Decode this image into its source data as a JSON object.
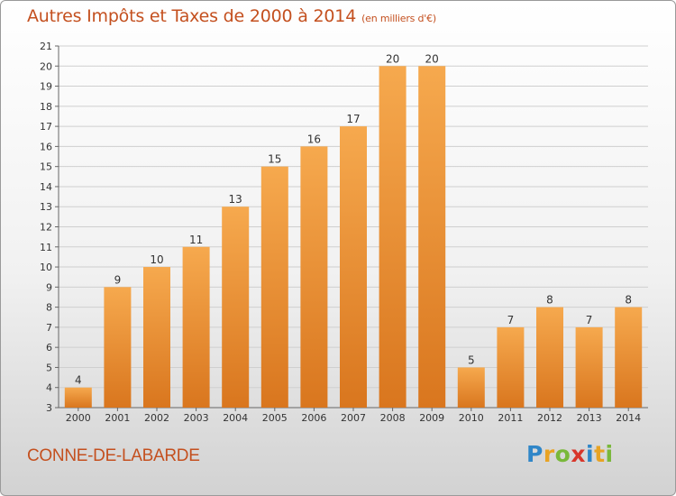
{
  "title": "Autres Impôts et Taxes de 2000 à 2014",
  "subtitle": "(en milliers d'€)",
  "commune": "CONNE-DE-LABARDE",
  "logo": {
    "letters": [
      "P",
      "r",
      "o",
      "x",
      "i",
      "t",
      "i"
    ],
    "colors": [
      "#2f86c8",
      "#e8a323",
      "#79b83a",
      "#d8362a",
      "#2f86c8",
      "#e8a323",
      "#79b83a"
    ]
  },
  "colors": {
    "bar_light": "#f6a94e",
    "bar_dark": "#d9761e",
    "grid": "#cfcfcf",
    "axis": "#666666",
    "text": "#333333"
  },
  "chart_data": {
    "type": "bar",
    "categories": [
      "2000",
      "2001",
      "2002",
      "2003",
      "2004",
      "2005",
      "2006",
      "2007",
      "2008",
      "2009",
      "2010",
      "2011",
      "2012",
      "2013",
      "2014"
    ],
    "values": [
      4,
      9,
      10,
      11,
      13,
      15,
      16,
      17,
      20,
      20,
      5,
      7,
      8,
      7,
      8
    ],
    "ylim": [
      3,
      21
    ],
    "yticks": [
      3,
      4,
      5,
      6,
      7,
      8,
      9,
      10,
      11,
      12,
      13,
      14,
      15,
      16,
      17,
      18,
      19,
      20,
      21
    ],
    "grid": true,
    "data_labels": true
  }
}
